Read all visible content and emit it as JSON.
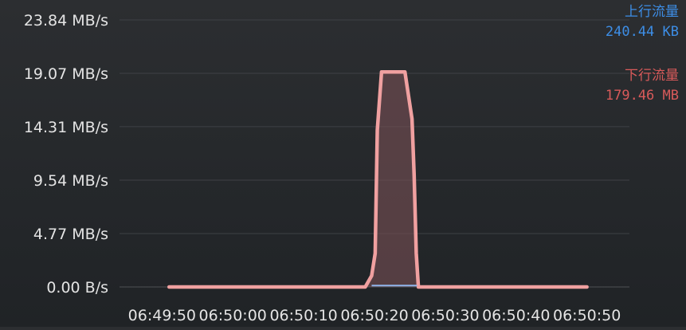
{
  "chart_data": {
    "type": "area",
    "y_tick_labels": [
      "0.00 B/s",
      "4.77 MB/s",
      "9.54 MB/s",
      "14.31 MB/s",
      "19.07 MB/s",
      "23.84 MB/s"
    ],
    "y_tick_values_mbps": [
      0,
      4.77,
      9.54,
      14.31,
      19.07,
      23.84
    ],
    "ylim_mbps": [
      0,
      23.84
    ],
    "x_tick_labels": [
      "06:49:50",
      "06:50:00",
      "06:50:10",
      "06:50:20",
      "06:50:30",
      "06:50:40",
      "06:50:50"
    ],
    "x_tick_values_s": [
      0,
      10,
      20,
      30,
      40,
      50,
      60
    ],
    "xlim_s": [
      -6,
      66
    ],
    "grid": "horizontal",
    "legend_placement": "top-right",
    "series": [
      {
        "name": "下行流量",
        "color": "#f0a0a0",
        "fill": "rgba(120,80,85,0.6)",
        "points": [
          [
            1,
            0
          ],
          [
            28.7,
            0
          ],
          [
            29.6,
            1.0
          ],
          [
            30.1,
            3.0
          ],
          [
            30.4,
            14.0
          ],
          [
            31.0,
            19.2
          ],
          [
            34.3,
            19.2
          ],
          [
            35.3,
            15.0
          ],
          [
            35.6,
            10.0
          ],
          [
            35.9,
            3.0
          ],
          [
            36.2,
            0
          ],
          [
            60,
            0
          ]
        ]
      },
      {
        "name": "上行流量",
        "color": "#8fb6ec",
        "points": [
          [
            29.6,
            0.05
          ],
          [
            36.0,
            0.05
          ]
        ]
      }
    ],
    "legend": {
      "upload": {
        "label": "上行流量",
        "total": "240.44 KB",
        "color": "#3d8ee6"
      },
      "download": {
        "label": "下行流量",
        "total": "179.46 MB",
        "color": "#d85a5a"
      }
    }
  }
}
